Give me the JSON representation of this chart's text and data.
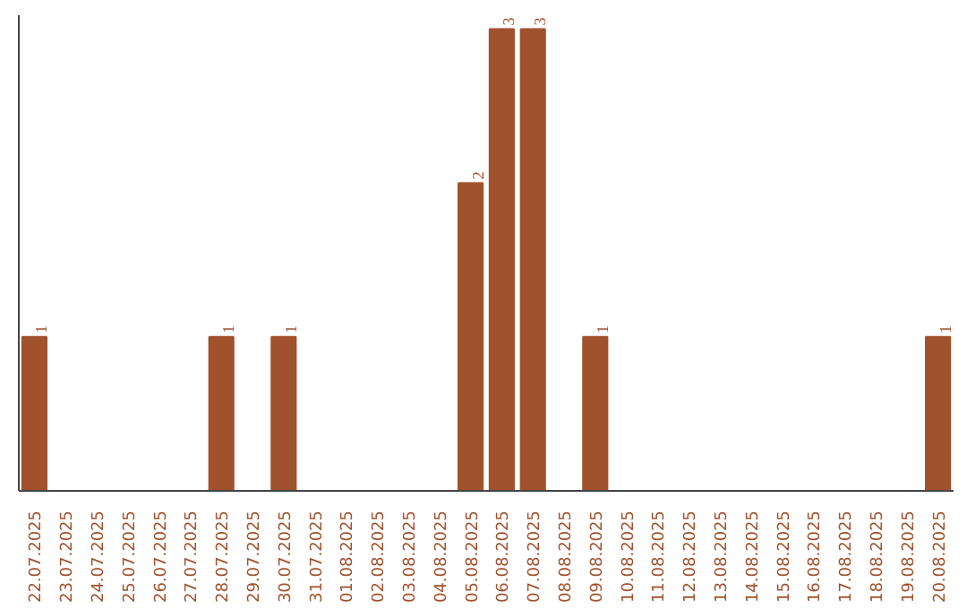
{
  "chart_data": {
    "type": "bar",
    "categories": [
      "22.07.2025",
      "23.07.2025",
      "24.07.2025",
      "25.07.2025",
      "26.07.2025",
      "27.07.2025",
      "28.07.2025",
      "29.07.2025",
      "30.07.2025",
      "31.07.2025",
      "01.08.2025",
      "02.08.2025",
      "03.08.2025",
      "04.08.2025",
      "05.08.2025",
      "06.08.2025",
      "07.08.2025",
      "08.08.2025",
      "09.08.2025",
      "10.08.2025",
      "11.08.2025",
      "12.08.2025",
      "13.08.2025",
      "14.08.2025",
      "15.08.2025",
      "16.08.2025",
      "17.08.2025",
      "18.08.2025",
      "19.08.2025",
      "20.08.2025"
    ],
    "values": [
      1,
      0,
      0,
      0,
      0,
      0,
      1,
      0,
      1,
      0,
      0,
      0,
      0,
      0,
      2,
      3,
      3,
      0,
      1,
      0,
      0,
      0,
      0,
      0,
      0,
      0,
      0,
      0,
      0,
      1
    ],
    "color": "#a0522d",
    "value_labels": [
      "1",
      null,
      null,
      null,
      null,
      null,
      "1",
      null,
      "1",
      null,
      null,
      null,
      null,
      null,
      "2",
      "3",
      "3",
      null,
      "1",
      null,
      null,
      null,
      null,
      null,
      null,
      null,
      null,
      null,
      null,
      "1"
    ]
  }
}
